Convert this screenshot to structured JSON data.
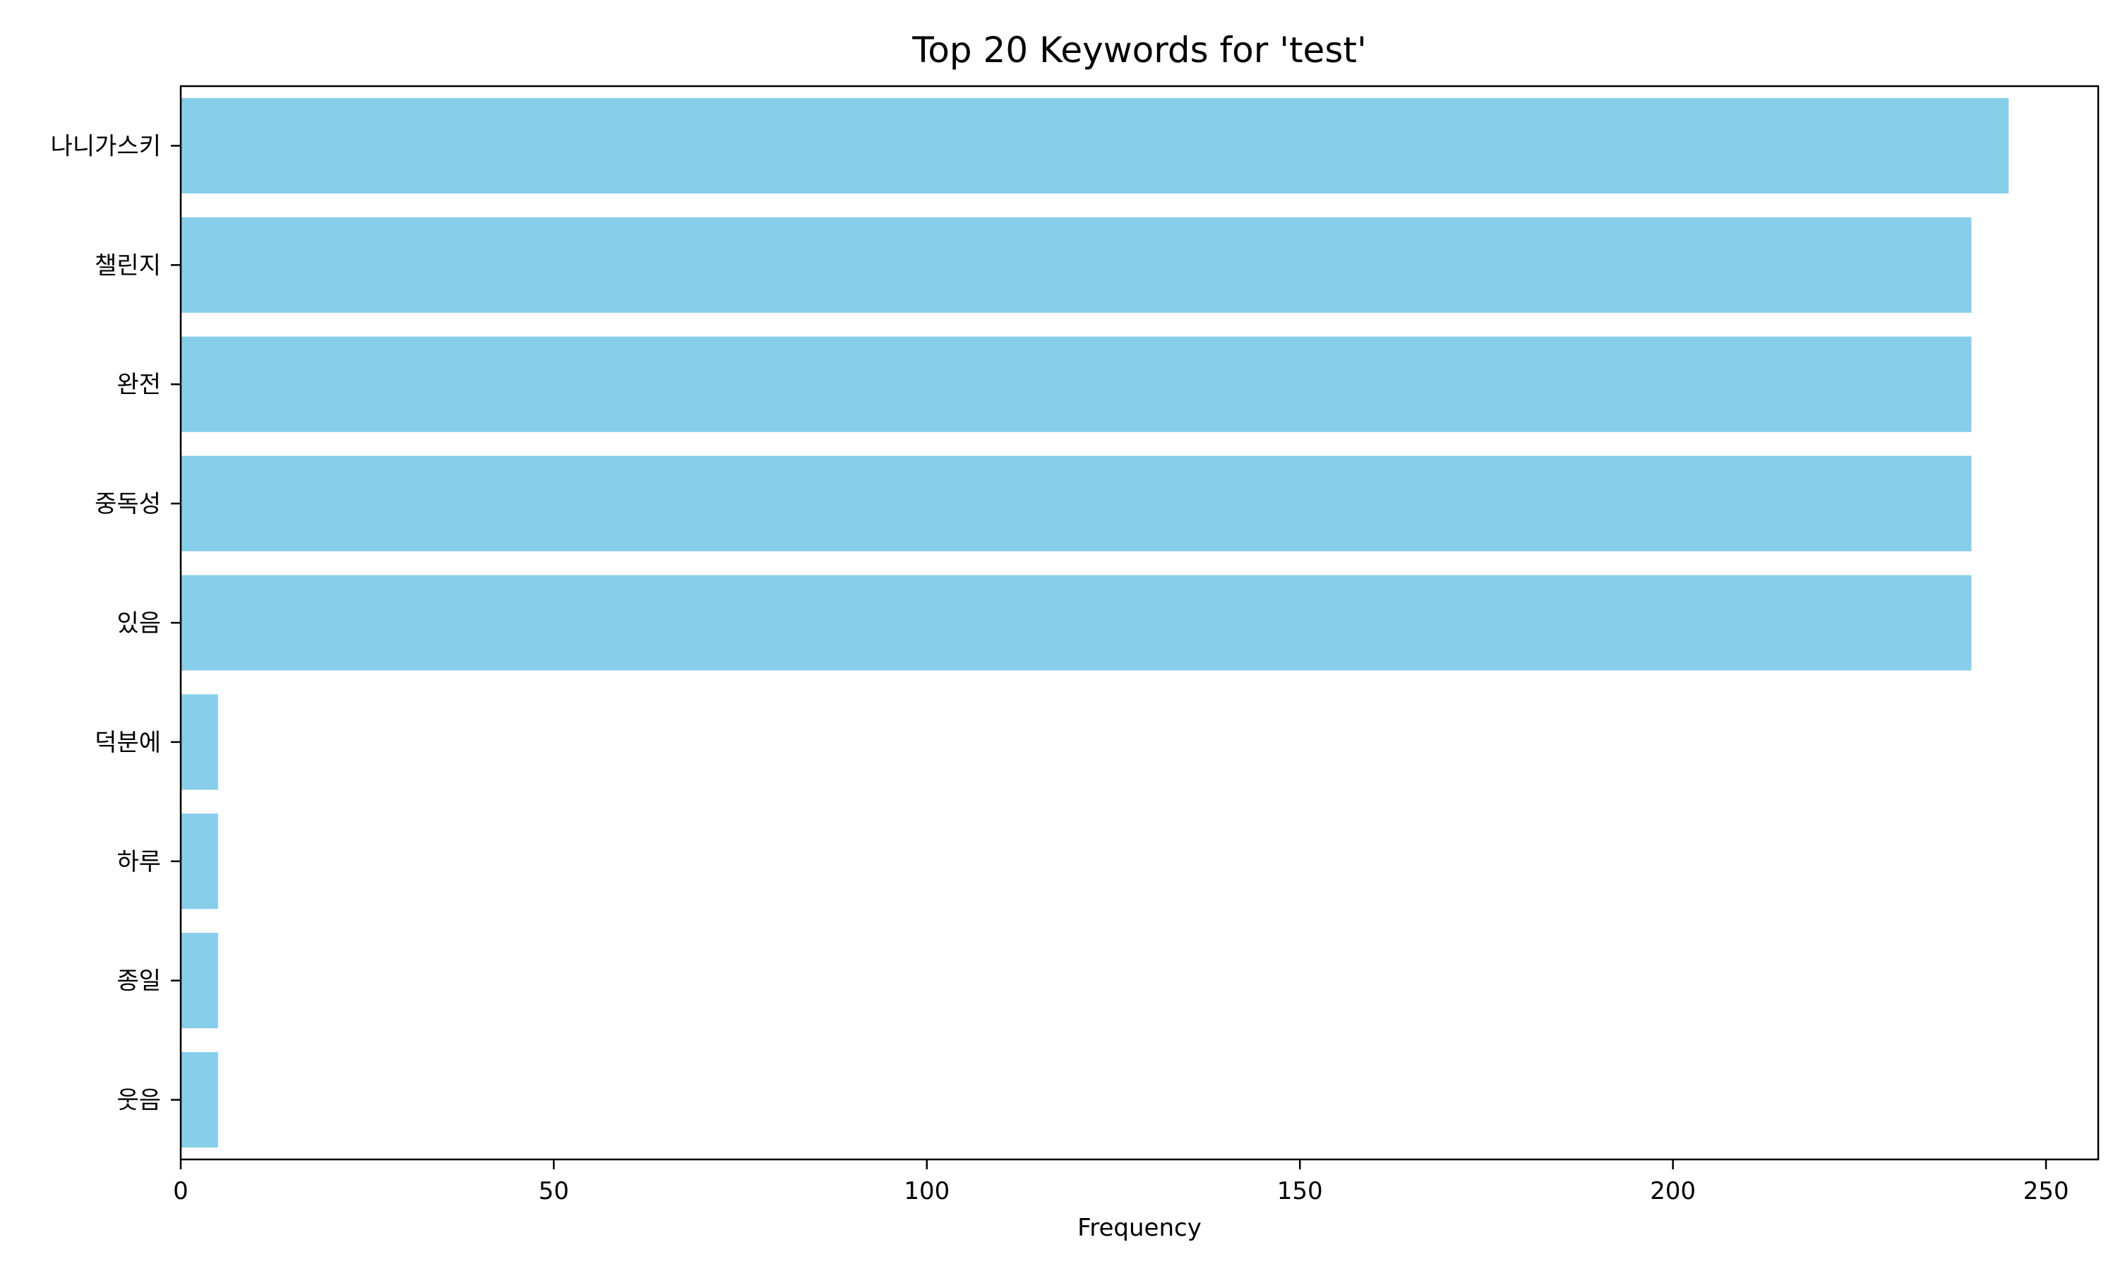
{
  "chart_data": {
    "type": "bar",
    "orientation": "horizontal",
    "title": "Top 20 Keywords for 'test'",
    "xlabel": "Frequency",
    "ylabel": "",
    "categories": [
      "나니가스키",
      "챌린지",
      "완전",
      "중독성",
      "있음",
      "덕분에",
      "하루",
      "종일",
      "웃음"
    ],
    "values": [
      245,
      240,
      240,
      240,
      240,
      5,
      5,
      5,
      5
    ],
    "xlim": [
      0,
      257
    ],
    "xticks": [
      0,
      50,
      100,
      150,
      200,
      250
    ],
    "grid": false,
    "bar_color": "#87ceeb"
  }
}
